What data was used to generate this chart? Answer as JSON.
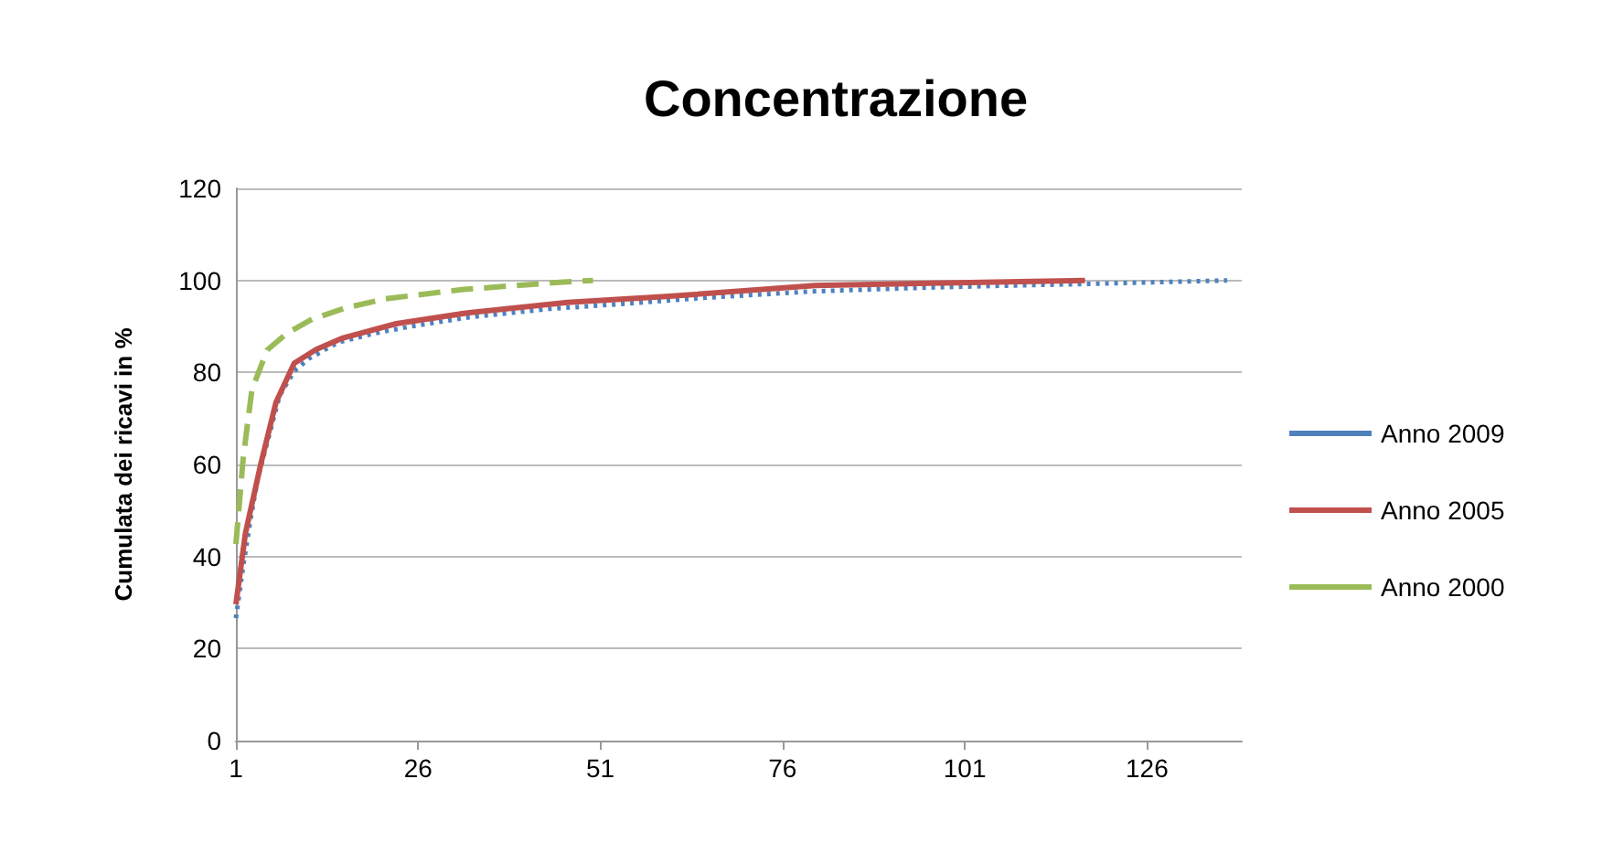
{
  "chart_data": {
    "type": "line",
    "title": "Concentrazione",
    "ylabel": "Cumulata dei ricavi in %",
    "xlim": [
      1,
      139
    ],
    "xticks": [
      1,
      26,
      51,
      76,
      101,
      126
    ],
    "ylim": [
      0,
      120
    ],
    "yticks": [
      0,
      20,
      40,
      60,
      80,
      100,
      120
    ],
    "grid": "y",
    "legend": "right",
    "marker": "none",
    "series": [
      {
        "name": "Anno 2009",
        "color": "#4f81bd",
        "line_style": "dotted",
        "x": [
          1,
          2,
          3,
          4,
          5,
          6,
          7,
          9,
          11,
          15,
          20,
          25,
          33,
          44,
          55,
          65,
          80,
          95,
          105,
          117,
          127,
          137
        ],
        "values": [
          26.6,
          38,
          48,
          57,
          63,
          69,
          75,
          80.3,
          83,
          86.5,
          88.5,
          90,
          92,
          93.8,
          95,
          96.2,
          97.6,
          98.4,
          98.8,
          99.2,
          99.6,
          100
        ]
      },
      {
        "name": "Anno 2005",
        "color": "#c0504d",
        "line_style": "solid",
        "x": [
          1,
          2.3,
          4.4,
          6.5,
          9,
          12,
          15.7,
          23,
          33,
          46.5,
          60,
          80.5,
          100,
          117.5
        ],
        "values": [
          29.6,
          45,
          60,
          73.5,
          82,
          85,
          87.5,
          90.6,
          93,
          95.2,
          96.5,
          98.9,
          99.5,
          100
        ]
      },
      {
        "name": "Anno 2000",
        "color": "#9bbb59",
        "line_style": "dashed",
        "x": [
          1,
          2,
          3.2,
          5.3,
          8,
          11.5,
          16,
          21.5,
          32,
          45.4,
          50
        ],
        "values": [
          42.7,
          61.4,
          76.3,
          84.9,
          88.5,
          91.6,
          94,
          96,
          98,
          99.6,
          100
        ]
      }
    ]
  }
}
